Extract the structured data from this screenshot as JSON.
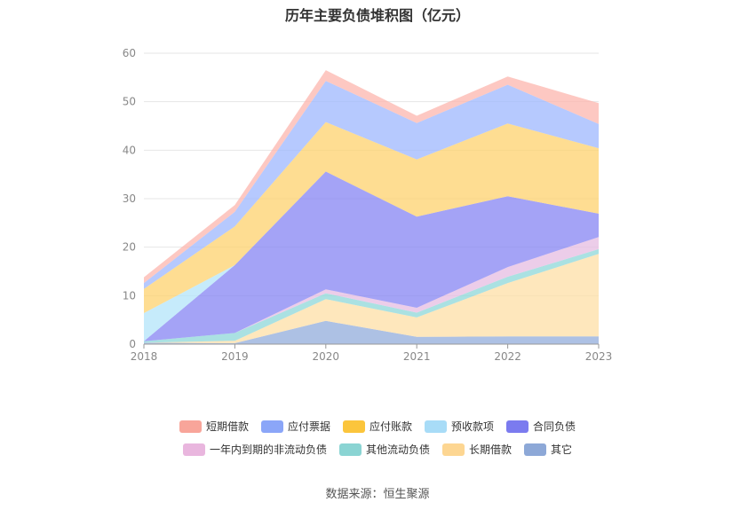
{
  "chart_data": {
    "type": "area",
    "stacked": true,
    "title": "历年主要负债堆积图（亿元）",
    "x": [
      "2018",
      "2019",
      "2020",
      "2021",
      "2022",
      "2023"
    ],
    "y_ticks": [
      "0",
      "10",
      "20",
      "30",
      "40",
      "50",
      "60"
    ],
    "ylim": [
      0,
      60
    ],
    "grid": true,
    "legend_position": "bottom",
    "series": [
      {
        "name": "其它",
        "color": "#91acdb",
        "values": [
          0.3,
          0.2,
          4.8,
          1.5,
          1.6,
          1.6
        ]
      },
      {
        "name": "长期借款",
        "color": "#fddfa6",
        "values": [
          0.0,
          0.5,
          4.5,
          4.0,
          11.0,
          17.0
        ]
      },
      {
        "name": "其他流动负债",
        "color": "#8ed7d8",
        "values": [
          0.3,
          1.6,
          1.2,
          1.0,
          1.3,
          1.0
        ]
      },
      {
        "name": "一年内到期的非流动负债",
        "color": "#e6bce2",
        "values": [
          0.0,
          0.0,
          0.8,
          1.0,
          2.0,
          2.5
        ]
      },
      {
        "name": "合同负债",
        "color": "#8584f3",
        "values": [
          0.0,
          14.0,
          24.3,
          18.8,
          14.6,
          4.8
        ]
      },
      {
        "name": "预收款项",
        "color": "#b3e4fa",
        "values": [
          5.8,
          0.0,
          0.0,
          0.0,
          0.0,
          0.0
        ]
      },
      {
        "name": "应付账款",
        "color": "#fed26e",
        "values": [
          5.0,
          8.0,
          10.2,
          11.8,
          15.0,
          13.5
        ]
      },
      {
        "name": "应付票据",
        "color": "#9eb7fd",
        "values": [
          1.2,
          3.0,
          8.5,
          7.5,
          8.0,
          5.0
        ]
      },
      {
        "name": "短期借款",
        "color": "#fcb5ad",
        "values": [
          1.2,
          1.4,
          2.2,
          1.5,
          1.7,
          4.3
        ]
      }
    ]
  },
  "legend": {
    "row1": [
      {
        "label": "短期借款",
        "color": "#f8a59a"
      },
      {
        "label": "应付票据",
        "color": "#8ba6f8"
      },
      {
        "label": "应付账款",
        "color": "#fbc53c"
      },
      {
        "label": "预收款项",
        "color": "#a8dcf7"
      },
      {
        "label": "合同负债",
        "color": "#7b7bef"
      }
    ],
    "row2": [
      {
        "label": "一年内到期的非流动负债",
        "color": "#e9b6de"
      },
      {
        "label": "其他流动负债",
        "color": "#8ad4d3"
      },
      {
        "label": "长期借款",
        "color": "#fdd692"
      },
      {
        "label": "其它",
        "color": "#8da8d7"
      }
    ]
  },
  "source": "数据来源：恒生聚源"
}
